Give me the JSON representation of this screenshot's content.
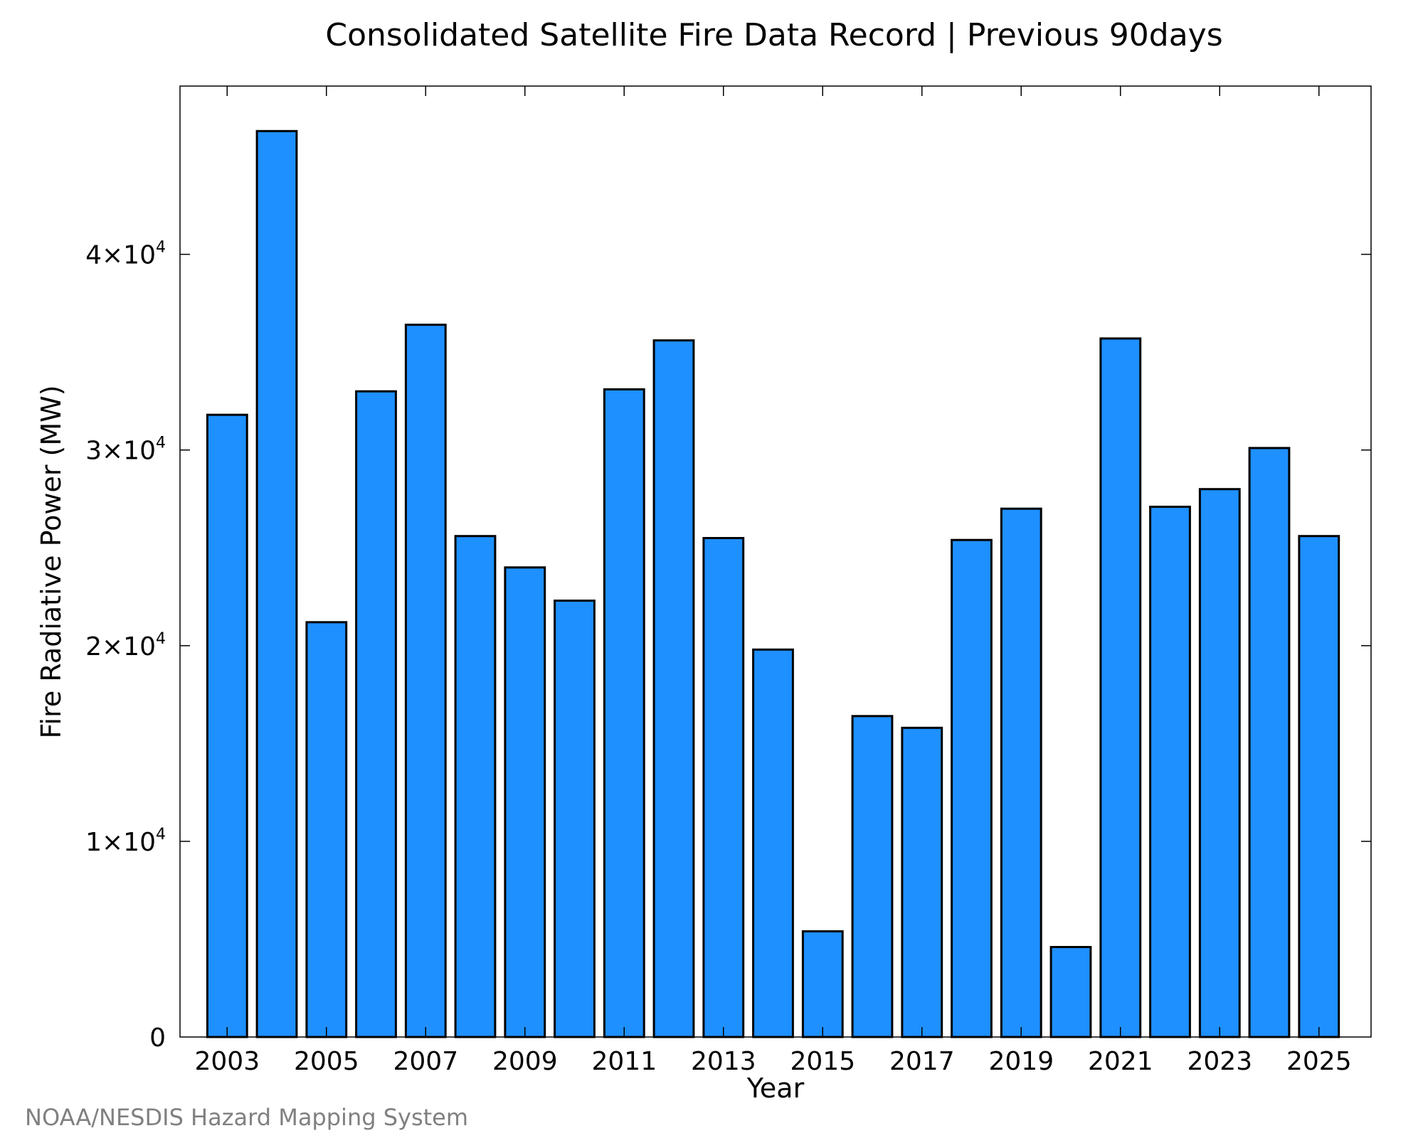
{
  "colors": {
    "bar_fill": "#1E90FF",
    "bar_stroke": "#000000",
    "footer": "#808080"
  },
  "footer": {
    "credit": "NOAA/NESDIS Hazard Mapping System"
  },
  "chart_data": {
    "type": "bar",
    "title": "Consolidated Satellite Fire Data Record | Previous 90days",
    "xlabel": "Year",
    "ylabel": "Fire Radiative Power (MW)",
    "categories": [
      2003,
      2004,
      2005,
      2006,
      2007,
      2008,
      2009,
      2010,
      2011,
      2012,
      2013,
      2014,
      2015,
      2016,
      2017,
      2018,
      2019,
      2020,
      2021,
      2022,
      2023,
      2024,
      2025
    ],
    "values": [
      31800,
      46300,
      21200,
      33000,
      36400,
      25600,
      24000,
      22300,
      33100,
      35600,
      25500,
      19800,
      5400,
      16400,
      15800,
      25400,
      27000,
      4600,
      35700,
      27100,
      28000,
      30100,
      25600
    ],
    "xlim": [
      2002.05,
      2026.05
    ],
    "ylim": [
      0,
      48600
    ],
    "x_tick_labels": [
      "2003",
      "2005",
      "2007",
      "2009",
      "2011",
      "2013",
      "2015",
      "2017",
      "2019",
      "2021",
      "2023",
      "2025"
    ],
    "y_ticks": [
      {
        "value": 0,
        "mantissa": "0",
        "exponent": ""
      },
      {
        "value": 10000,
        "mantissa": "1×10",
        "exponent": "4"
      },
      {
        "value": 20000,
        "mantissa": "2×10",
        "exponent": "4"
      },
      {
        "value": 30000,
        "mantissa": "3×10",
        "exponent": "4"
      },
      {
        "value": 40000,
        "mantissa": "4×10",
        "exponent": "4"
      }
    ],
    "grid": false,
    "legend": "none"
  }
}
